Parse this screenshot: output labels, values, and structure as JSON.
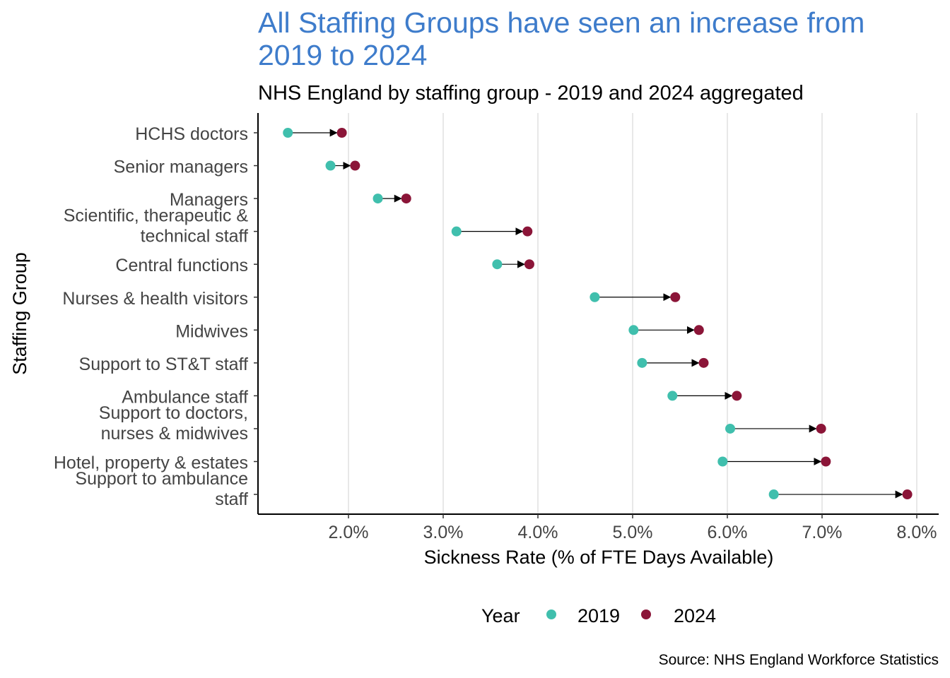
{
  "chart_data": {
    "type": "dumbbell",
    "title": "All Staffing Groups have seen an increase from 2019 to 2024",
    "subtitle": "NHS England by staffing group - 2019 and 2024 aggregated",
    "xlabel": "Sickness Rate (% of FTE Days Available)",
    "ylabel": "Staffing Group",
    "caption": "Source: NHS England Workforce Statistics",
    "xlim": [
      1.1,
      8.25
    ],
    "xticks": [
      2,
      3,
      4,
      5,
      6,
      7,
      8
    ],
    "xtick_labels": [
      "2.0%",
      "3.0%",
      "4.0%",
      "5.0%",
      "6.0%",
      "7.0%",
      "8.0%"
    ],
    "grid": "vertical major",
    "legend": {
      "title": "Year",
      "position": "bottom",
      "entries": [
        "2019",
        "2024"
      ]
    },
    "colors": {
      "2019": "#40BFAD",
      "2024": "#8B1538"
    },
    "categories": [
      [
        "HCHS doctors"
      ],
      [
        "Senior managers"
      ],
      [
        "Managers"
      ],
      [
        "Scientific, therapeutic &",
        "technical staff"
      ],
      [
        "Central functions"
      ],
      [
        "Nurses & health visitors"
      ],
      [
        "Midwives"
      ],
      [
        "Support to ST&T staff"
      ],
      [
        "Ambulance staff"
      ],
      [
        "Support to doctors,",
        "nurses & midwives"
      ],
      [
        "Hotel, property & estates"
      ],
      [
        "Support to ambulance",
        "staff"
      ]
    ],
    "series": [
      {
        "name": "2019",
        "values": [
          1.36,
          1.81,
          2.31,
          3.14,
          3.57,
          4.6,
          5.01,
          5.1,
          5.42,
          6.03,
          5.95,
          6.49
        ]
      },
      {
        "name": "2024",
        "values": [
          1.93,
          2.07,
          2.61,
          3.89,
          3.91,
          5.45,
          5.7,
          5.75,
          6.1,
          6.99,
          7.04,
          7.9
        ]
      }
    ]
  }
}
